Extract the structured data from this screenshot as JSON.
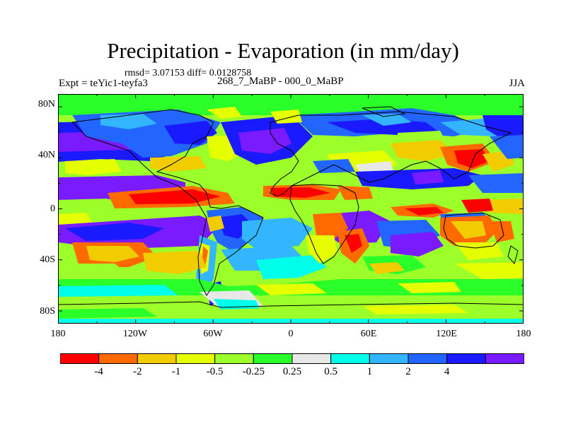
{
  "title": "Precipitation - Evaporation (in mm/day)",
  "stats": "rmsd= 3.07153 diff= 0.0128758",
  "expt": "Expt = teYic1-teyfa3",
  "period": "268_7_MaBP - 000_0_MaBP",
  "season": "JJA",
  "y_ticks": [
    "80N",
    "40N",
    "0",
    "40S",
    "80S"
  ],
  "x_ticks": [
    "180",
    "120W",
    "60W",
    "0",
    "60E",
    "120E",
    "180"
  ],
  "colorbar": {
    "colors": [
      "#ff0000",
      "#ff6a00",
      "#f0cc00",
      "#e6ff00",
      "#9cff2a",
      "#2aff2a",
      "#e8e8e8",
      "#00ffea",
      "#33b5ff",
      "#2266ff",
      "#1a1aff",
      "#7a1aff"
    ],
    "labels": [
      "-4",
      "-2",
      "-1",
      "-0.5",
      "-0.25",
      "0.25",
      "0.5",
      "1",
      "2",
      "4"
    ]
  },
  "chart_data": {
    "type": "heatmap",
    "title": "Precipitation - Evaporation (in mm/day)",
    "subtitle": "rmsd= 3.07153 diff= 0.0128758",
    "left_label": "Expt = teYic1-teyfa3",
    "center_label": "268_7_MaBP - 000_0_MaBP",
    "right_label": "JJA",
    "x_range": [
      -180,
      180
    ],
    "y_range": [
      -90,
      90
    ],
    "x_tick_labels": [
      "180",
      "120W",
      "60W",
      "0",
      "60E",
      "120E",
      "180"
    ],
    "y_tick_labels": [
      "80N",
      "40N",
      "0",
      "40S",
      "80S"
    ],
    "levels": [
      -4,
      -2,
      -1,
      -0.5,
      -0.25,
      0.25,
      0.5,
      1,
      2,
      4
    ],
    "units": "mm/day"
  }
}
